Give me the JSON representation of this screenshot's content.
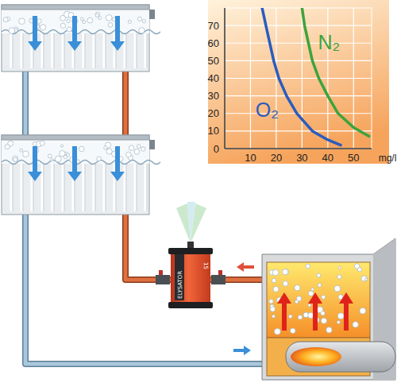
{
  "chart_data": {
    "type": "line",
    "x_label": "mg/l",
    "xlim": [
      0,
      57
    ],
    "ylim": [
      0,
      80
    ],
    "xticks": [
      10,
      20,
      30,
      40,
      50
    ],
    "yticks": [
      0,
      10,
      20,
      30,
      40,
      50,
      60,
      70
    ],
    "grid": true,
    "series": [
      {
        "name": "O₂",
        "color": "#2a5cbf",
        "x": [
          14.5,
          16,
          17.5,
          19,
          21,
          24,
          28,
          34,
          40,
          45
        ],
        "values": [
          80,
          70,
          60,
          50,
          40,
          30,
          20,
          10,
          5,
          2
        ]
      },
      {
        "name": "N₂",
        "color": "#3da33d",
        "x": [
          30,
          31,
          32.5,
          34,
          36.5,
          40,
          44,
          50,
          56
        ],
        "values": [
          80,
          70,
          60,
          50,
          40,
          30,
          20,
          12,
          7
        ]
      }
    ]
  },
  "diagram": {
    "device": {
      "label": "ELYSATOR",
      "model": "15"
    }
  }
}
